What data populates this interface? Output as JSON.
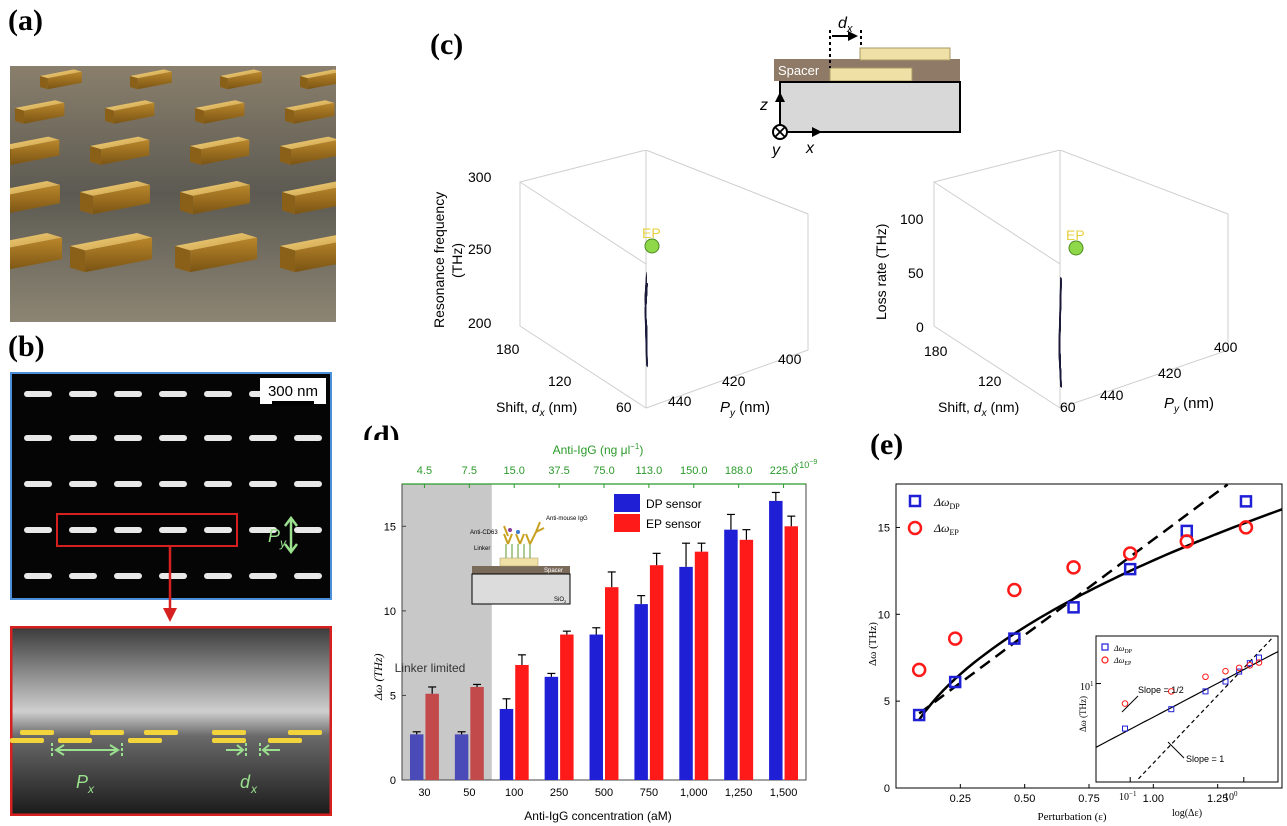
{
  "panel_labels": {
    "a": "(a)",
    "b": "(b)",
    "c": "(c)",
    "d": "(d)",
    "e": "(e)"
  },
  "panel_b": {
    "scale_bar": "300 nm",
    "py_label": "P",
    "py_sub": "y",
    "px_label": "P",
    "px_sub": "x",
    "dx_label": "d",
    "dx_sub": "x",
    "colors": {
      "sem_frame_top": "#4a8fd8",
      "sem_frame_bottom": "#d62020",
      "marker": "#9be08e",
      "bar": "#f2d33b"
    }
  },
  "panel_c": {
    "schematic": {
      "spacer": "Spacer",
      "dx": "d",
      "dx_sub": "x",
      "axis_z": "z",
      "axis_x": "x",
      "axis_y": "y"
    },
    "left": {
      "zlabel_line1": "Resonance frequency",
      "zlabel_line2": "(THz)",
      "zticks": [
        "300",
        "250",
        "200"
      ],
      "shift_ticks": [
        "180",
        "120",
        "60"
      ],
      "py_ticks": [
        "400",
        "420",
        "440"
      ],
      "shift_label": "Shift, ",
      "shift_label_var": "d",
      "shift_label_sub": "x",
      "shift_label_unit": " (nm)",
      "py_label_var": "P",
      "py_label_sub": "y",
      "py_label_unit": " (nm)",
      "ep": "EP"
    },
    "right": {
      "zlabel": "Loss rate (THz)",
      "zticks": [
        "100",
        "50",
        "0"
      ],
      "shift_ticks": [
        "180",
        "120",
        "60"
      ],
      "py_ticks": [
        "400",
        "420",
        "440"
      ],
      "shift_label": "Shift, ",
      "shift_label_var": "d",
      "shift_label_sub": "x",
      "shift_label_unit": " (nm)",
      "py_label_var": "P",
      "py_label_sub": "y",
      "py_label_unit": " (nm)",
      "ep": "EP"
    },
    "colors": {
      "blue_surface": "#3a3fe0",
      "red_surface": "#e23a3a",
      "ep_marker": "#8ed84a"
    }
  },
  "chart_data": [
    {
      "type": "bar",
      "panel": "d",
      "categories": [
        "30",
        "50",
        "100",
        "250",
        "500",
        "750",
        "1,000",
        "1,250",
        "1,500"
      ],
      "top_categories": [
        "4.5",
        "7.5",
        "15.0",
        "37.5",
        "75.0",
        "113.0",
        "150.0",
        "188.0",
        "225.0"
      ],
      "top_label": "Anti-IgG (ng μl",
      "top_label_sup": "−1",
      "top_label_close": ")",
      "top_exponent": "×10",
      "top_exponent_sup": "−9",
      "xlabel": "Anti-IgG concentration (aM)",
      "ylabel": "Δω (THz)",
      "ylim": [
        0,
        17.5
      ],
      "yticks": [
        "0",
        "5",
        "10",
        "15"
      ],
      "series": [
        {
          "name": "DP sensor",
          "color": "#1f1fd6",
          "values": [
            2.7,
            2.7,
            4.2,
            6.1,
            8.6,
            10.4,
            12.6,
            14.8,
            16.5
          ],
          "errors": [
            0.15,
            0.15,
            0.6,
            0.2,
            0.4,
            0.5,
            1.4,
            0.9,
            0.5
          ]
        },
        {
          "name": "EP sensor",
          "color": "#ff1a1a",
          "values": [
            5.1,
            5.5,
            6.8,
            8.6,
            11.4,
            12.7,
            13.5,
            14.2,
            15.0
          ],
          "errors": [
            0.4,
            0.15,
            0.6,
            0.2,
            0.9,
            0.7,
            0.5,
            0.6,
            0.6
          ]
        }
      ],
      "shaded_region_label": "Linker limited",
      "inset_labels": {
        "anti_cd63": "Anti-CD63",
        "anti_mouse": "Anti-mouse IgG",
        "linker": "Linker",
        "spacer": "Spacer",
        "substrate": "SiO",
        "substrate_sub": "2"
      }
    },
    {
      "type": "scatter",
      "panel": "e",
      "xlabel": "Perturbation (ε)",
      "ylabel": "Δω (THz)",
      "xlim": [
        0,
        1.5
      ],
      "ylim": [
        0,
        17.5
      ],
      "xticks": [
        "0.25",
        "0.50",
        "0.75",
        "1.00",
        "1.25"
      ],
      "yticks": [
        "0",
        "5",
        "10",
        "15"
      ],
      "series": [
        {
          "name": "Δω",
          "name_sub": "DP",
          "marker": "square",
          "color": "#1f1fd6",
          "x": [
            0.09,
            0.23,
            0.46,
            0.69,
            0.91,
            1.13,
            1.36
          ],
          "y": [
            4.2,
            6.1,
            8.6,
            10.4,
            12.6,
            14.8,
            16.5
          ]
        },
        {
          "name": "Δω",
          "name_sub": "EP",
          "marker": "circle",
          "color": "#ff1a1a",
          "x": [
            0.09,
            0.23,
            0.46,
            0.69,
            0.91,
            1.13,
            1.36
          ],
          "y": [
            6.8,
            8.6,
            11.4,
            12.7,
            13.5,
            14.2,
            15.0
          ]
        }
      ],
      "fits": [
        {
          "style": "solid",
          "form": "a*sqrt(x)",
          "a": 13.1
        },
        {
          "style": "dashed",
          "form": "a*x+b",
          "a": 11.0,
          "b": 3.3
        }
      ],
      "inset": {
        "xlabel": "log(Δε)",
        "ylabel": "Δω (THz)",
        "xtick_major": [
          "10",
          "10"
        ],
        "xtick_sups": [
          "−1",
          "0"
        ],
        "ytick_major": "10",
        "ytick_sup": "1",
        "slope_half": "Slope = 1/2",
        "slope_one": "Slope = 1",
        "legend_dp": "Δω",
        "legend_dp_sub": "DP",
        "legend_ep": "Δω",
        "legend_ep_sub": "EP"
      }
    }
  ]
}
